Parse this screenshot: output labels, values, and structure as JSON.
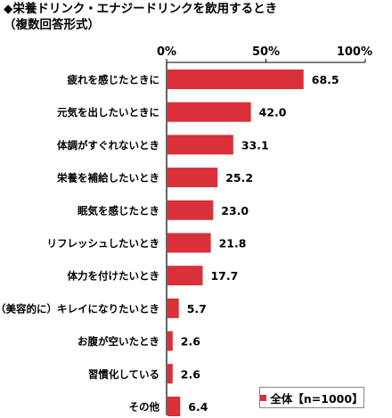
{
  "title": "◆栄養ドリンク・エナジードリンクを飲用するとき",
  "subtitle": "（複数回答形式）",
  "colors": {
    "bar": "#d9303a",
    "axis": "#000000",
    "gridline": "#bbbbbb"
  },
  "chart_data": {
    "type": "bar",
    "orientation": "horizontal",
    "categories": [
      "疲れを感じたときに",
      "元気を出したいときに",
      "体調がすぐれないとき",
      "栄養を補給したいとき",
      "眠気を感じたとき",
      "リフレッシュしたいとき",
      "体力を付けたいとき",
      "（美容的に）キレイになりたいとき",
      "お腹が空いたとき",
      "習慣化している",
      "その他"
    ],
    "series": [
      {
        "name": "全体【n=1000】",
        "values": [
          68.5,
          42.0,
          33.1,
          25.2,
          23.0,
          21.8,
          17.7,
          5.7,
          2.6,
          2.6,
          6.4
        ]
      }
    ],
    "value_labels": [
      "68.5",
      "42.0",
      "33.1",
      "25.2",
      "23.0",
      "21.8",
      "17.7",
      "5.7",
      "2.6",
      "2.6",
      "6.4"
    ],
    "xlim": [
      0,
      100
    ],
    "xticks": [
      {
        "value": 0,
        "label": "0%"
      },
      {
        "value": 50,
        "label": "50%"
      },
      {
        "value": 100,
        "label": "100%"
      }
    ],
    "legend_position": "bottom-right"
  }
}
